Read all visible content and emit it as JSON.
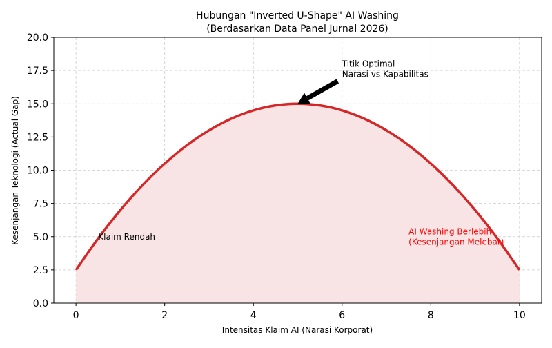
{
  "chart_data": {
    "type": "line",
    "title": "Hubungan \"Inverted U-Shape\" AI Washing",
    "subtitle": "(Berdasarkan Data Panel Jurnal 2026)",
    "xlabel": "Intensitas Klaim AI (Narasi Korporat)",
    "ylabel": "Kesenjangan Teknologi (Actual Gap)",
    "xlim": [
      -0.5,
      10.5
    ],
    "ylim": [
      0,
      20
    ],
    "xticks": [
      0,
      2,
      4,
      6,
      8,
      10
    ],
    "xtick_labels": [
      "0",
      "2",
      "4",
      "6",
      "8",
      "10"
    ],
    "yticks": [
      0,
      2.5,
      5,
      7.5,
      10,
      12.5,
      15,
      17.5,
      20
    ],
    "ytick_labels": [
      "0.0",
      "2.5",
      "5.0",
      "7.5",
      "10.0",
      "12.5",
      "15.0",
      "17.5",
      "20.0"
    ],
    "grid": true,
    "series": [
      {
        "x": [
          0,
          0.5,
          1,
          1.5,
          2,
          2.5,
          3,
          3.5,
          4,
          4.5,
          5,
          5.5,
          6,
          6.5,
          7,
          7.5,
          8,
          8.5,
          9,
          9.5,
          10
        ],
        "y": [
          2.5,
          4.875,
          7,
          8.875,
          10.5,
          11.875,
          13,
          13.875,
          14.5,
          14.875,
          15,
          14.875,
          14.5,
          13.875,
          13,
          11.875,
          10.5,
          8.875,
          7,
          4.875,
          2.5
        ],
        "color": "#d62728",
        "fill": "#f8e4e4"
      }
    ],
    "annotations": [
      {
        "text_lines": [
          "Titik Optimal",
          "Narasi vs Kapabilitas"
        ],
        "x": 6,
        "y": 17.6,
        "arrow_to": [
          5,
          15
        ],
        "arrow_from": [
          5.9,
          16.7
        ],
        "color": "#000000"
      },
      {
        "text_lines": [
          "Klaim Rendah"
        ],
        "x": 0.5,
        "y": 5,
        "color": "#000000"
      },
      {
        "text_lines": [
          "AI Washing Berlebih",
          "(Kesenjangan Melebar)"
        ],
        "x": 7.5,
        "y": 5,
        "color": "#ff0000"
      }
    ]
  }
}
